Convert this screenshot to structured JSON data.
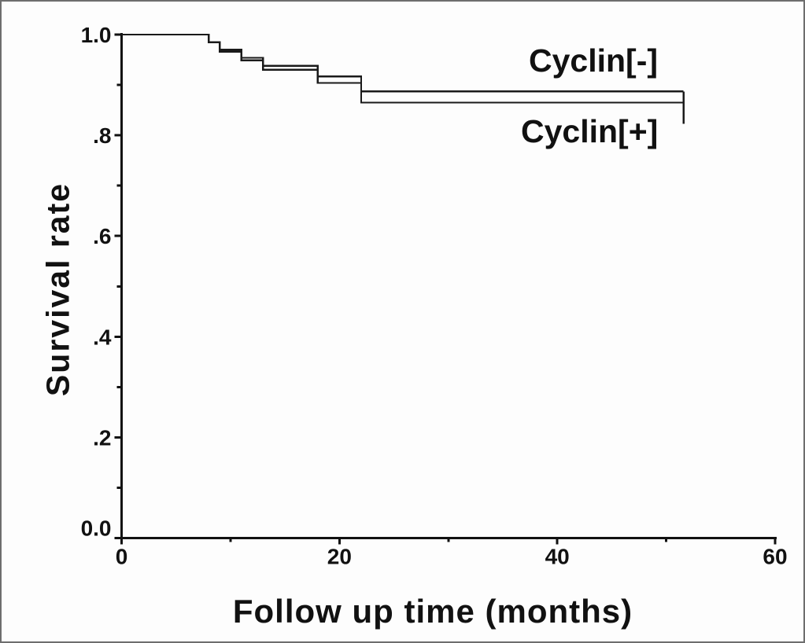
{
  "chart_data": {
    "type": "line",
    "subtype": "kaplan-meier-step",
    "title": "",
    "xlabel": "Follow up time (months)",
    "ylabel": "Survival rate",
    "xlim": [
      0,
      60
    ],
    "ylim": [
      0.0,
      1.0
    ],
    "grid": false,
    "legend_position": "inline-text-annotations",
    "x_ticks": {
      "major": [
        {
          "value": 0,
          "label": "0"
        },
        {
          "value": 20,
          "label": "20"
        },
        {
          "value": 40,
          "label": "40"
        },
        {
          "value": 60,
          "label": "60"
        }
      ],
      "minor": [
        10,
        30,
        50
      ]
    },
    "y_ticks": {
      "major": [
        {
          "value": 0.0,
          "label": "0.0"
        },
        {
          "value": 0.2,
          "label": ".2"
        },
        {
          "value": 0.4,
          "label": ".4"
        },
        {
          "value": 0.6,
          "label": ".6"
        },
        {
          "value": 0.8,
          "label": ".8"
        },
        {
          "value": 1.0,
          "label": "1.0"
        }
      ],
      "minor": [
        0.1,
        0.3,
        0.5,
        0.7,
        0.9
      ]
    },
    "series": [
      {
        "name": "cyclin-negative",
        "label_text": "Cyclin[-]",
        "color": "#1a1a1a",
        "steps": [
          [
            0,
            1.0
          ],
          [
            8,
            0.985
          ],
          [
            9,
            0.97
          ],
          [
            11,
            0.954
          ],
          [
            13,
            0.938
          ],
          [
            18,
            0.917
          ],
          [
            22,
            0.887
          ]
        ],
        "end_time": 51.6
      },
      {
        "name": "cyclin-positive",
        "label_text": "Cyclin[+]",
        "color": "#1a1a1a",
        "steps": [
          [
            0,
            1.0
          ],
          [
            8,
            0.985
          ],
          [
            9,
            0.966
          ],
          [
            11,
            0.949
          ],
          [
            13,
            0.93
          ],
          [
            18,
            0.904
          ],
          [
            22,
            0.865
          ]
        ],
        "end_time": 51.6
      }
    ],
    "terminal_tick": {
      "time": 51.6,
      "from_value": 0.887,
      "to_value": 0.823
    },
    "colors": {
      "line": "#1a1a1a",
      "axis": "#111111",
      "text": "#111111",
      "background": "#fdfdfd",
      "frame_border": "#6e6e6e"
    }
  }
}
